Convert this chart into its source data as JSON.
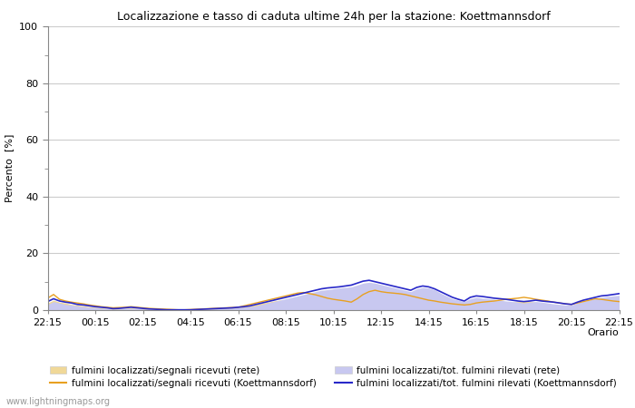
{
  "title": "Localizzazione e tasso di caduta ultime 24h per la stazione: Koettmannsdorf",
  "xlabel": "Orario",
  "ylabel": "Percento  [%]",
  "ylim": [
    0,
    100
  ],
  "yticks": [
    0,
    20,
    40,
    60,
    80,
    100
  ],
  "ytick_minor": [
    10,
    30,
    50,
    70,
    90
  ],
  "x_labels": [
    "22:15",
    "00:15",
    "02:15",
    "04:15",
    "06:15",
    "08:15",
    "10:15",
    "12:15",
    "14:15",
    "16:15",
    "18:15",
    "20:15",
    "22:15"
  ],
  "n_points": 97,
  "background_color": "#ffffff",
  "plot_bg_color": "#ffffff",
  "grid_color": "#cccccc",
  "color_orange_line": "#e8a020",
  "color_blue_line": "#2828c8",
  "color_orange_fill": "#f0d898",
  "color_blue_fill": "#c8c8f0",
  "watermark": "www.lightningmaps.org",
  "legend": [
    {
      "label": "fulmini localizzati/segnali ricevuti (rete)",
      "type": "fill",
      "color": "#f0d898"
    },
    {
      "label": "fulmini localizzati/segnali ricevuti (Koettmannsdorf)",
      "type": "line",
      "color": "#e8a020"
    },
    {
      "label": "fulmini localizzati/tot. fulmini rilevati (rete)",
      "type": "fill",
      "color": "#c8c8f0"
    },
    {
      "label": "fulmini localizzati/tot. fulmini rilevati (Koettmannsdorf)",
      "type": "line",
      "color": "#2828c8"
    }
  ],
  "orange_line": [
    4.2,
    5.5,
    3.8,
    3.2,
    2.8,
    2.5,
    2.2,
    1.8,
    1.5,
    1.2,
    1.0,
    0.8,
    0.9,
    1.0,
    1.2,
    1.0,
    0.8,
    0.6,
    0.5,
    0.4,
    0.3,
    0.2,
    0.1,
    0.1,
    0.2,
    0.3,
    0.4,
    0.5,
    0.6,
    0.7,
    0.8,
    0.9,
    1.0,
    1.5,
    2.0,
    2.5,
    3.0,
    3.5,
    4.0,
    4.5,
    5.0,
    5.5,
    6.0,
    6.2,
    5.8,
    5.4,
    4.8,
    4.2,
    3.8,
    3.5,
    3.2,
    2.8,
    4.0,
    5.5,
    6.5,
    7.0,
    6.5,
    6.2,
    6.0,
    5.8,
    5.5,
    5.0,
    4.5,
    4.0,
    3.5,
    3.2,
    2.8,
    2.5,
    2.2,
    2.0,
    1.8,
    2.0,
    2.5,
    2.8,
    3.0,
    3.2,
    3.5,
    3.8,
    4.0,
    4.2,
    4.5,
    4.2,
    3.8,
    3.5,
    3.2,
    2.8,
    2.5,
    2.2,
    2.0,
    2.5,
    3.0,
    3.5,
    4.0,
    3.8,
    3.5,
    3.2,
    3.0
  ],
  "blue_line": [
    3.0,
    4.0,
    3.2,
    2.8,
    2.5,
    2.0,
    1.8,
    1.5,
    1.2,
    1.0,
    0.8,
    0.5,
    0.6,
    0.8,
    1.0,
    0.8,
    0.6,
    0.4,
    0.3,
    0.2,
    0.1,
    0.1,
    0.1,
    0.1,
    0.1,
    0.2,
    0.3,
    0.4,
    0.5,
    0.6,
    0.7,
    0.8,
    1.0,
    1.2,
    1.5,
    2.0,
    2.5,
    3.0,
    3.5,
    4.0,
    4.5,
    5.0,
    5.5,
    6.0,
    6.5,
    7.0,
    7.5,
    7.8,
    8.0,
    8.2,
    8.5,
    8.8,
    9.5,
    10.2,
    10.5,
    10.0,
    9.5,
    9.0,
    8.5,
    8.0,
    7.5,
    7.0,
    8.0,
    8.5,
    8.2,
    7.5,
    6.5,
    5.5,
    4.5,
    3.8,
    3.2,
    4.5,
    5.0,
    4.8,
    4.5,
    4.2,
    4.0,
    3.8,
    3.5,
    3.2,
    3.0,
    3.2,
    3.5,
    3.2,
    3.0,
    2.8,
    2.5,
    2.2,
    2.0,
    2.8,
    3.5,
    4.0,
    4.5,
    5.0,
    5.2,
    5.5,
    5.8
  ],
  "orange_fill_upper": [
    2.5,
    3.5,
    2.8,
    2.5,
    2.0,
    1.8,
    1.5,
    1.2,
    1.0,
    0.8,
    0.6,
    0.4,
    0.5,
    0.6,
    0.8,
    0.6,
    0.5,
    0.3,
    0.2,
    0.1,
    0.1,
    0.1,
    0.1,
    0.1,
    0.1,
    0.2,
    0.3,
    0.4,
    0.5,
    0.6,
    0.7,
    0.8,
    0.9,
    1.2,
    1.5,
    2.0,
    2.4,
    2.8,
    3.2,
    3.5,
    3.8,
    4.0,
    4.2,
    4.5,
    4.2,
    3.8,
    3.5,
    3.2,
    2.8,
    2.5,
    2.2,
    2.0,
    2.5,
    3.0,
    3.5,
    3.8,
    3.5,
    3.2,
    3.0,
    2.8,
    2.5,
    2.2,
    2.0,
    1.8,
    1.5,
    1.5,
    1.2,
    1.0,
    0.8,
    0.8,
    0.8,
    1.0,
    1.2,
    1.5,
    1.8,
    2.0,
    2.2,
    2.5,
    2.8,
    3.0,
    3.2,
    3.0,
    2.8,
    2.5,
    2.2,
    2.0,
    1.8,
    1.5,
    1.5,
    2.0,
    2.5,
    3.0,
    3.5,
    3.2,
    3.0,
    2.8,
    2.5
  ],
  "blue_fill_upper": [
    2.0,
    3.0,
    2.5,
    2.0,
    1.8,
    1.5,
    1.2,
    1.0,
    0.8,
    0.6,
    0.5,
    0.3,
    0.4,
    0.5,
    0.6,
    0.5,
    0.4,
    0.2,
    0.2,
    0.1,
    0.1,
    0.1,
    0.1,
    0.1,
    0.1,
    0.1,
    0.2,
    0.3,
    0.4,
    0.5,
    0.6,
    0.7,
    0.8,
    1.0,
    1.2,
    1.5,
    2.0,
    2.5,
    3.0,
    3.5,
    4.0,
    4.5,
    5.0,
    5.5,
    6.0,
    6.5,
    7.0,
    7.2,
    7.5,
    7.8,
    8.0,
    8.2,
    8.8,
    9.5,
    9.8,
    9.5,
    9.0,
    8.5,
    8.0,
    7.5,
    7.0,
    6.5,
    7.5,
    8.0,
    7.8,
    7.2,
    6.0,
    5.0,
    4.0,
    3.5,
    3.0,
    4.0,
    4.5,
    4.2,
    4.0,
    3.8,
    3.5,
    3.2,
    3.0,
    2.8,
    2.5,
    2.8,
    3.0,
    2.8,
    2.5,
    2.2,
    2.0,
    1.8,
    1.8,
    2.5,
    3.0,
    3.5,
    4.0,
    4.5,
    4.8,
    5.0,
    5.2
  ]
}
